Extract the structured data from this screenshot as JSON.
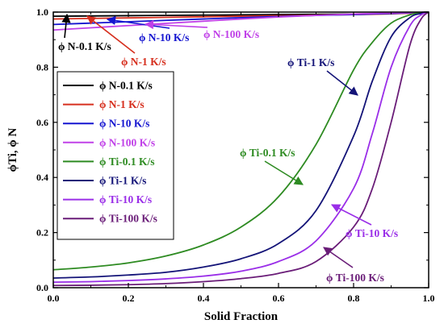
{
  "chart_data": {
    "type": "line",
    "xlabel": "Solid Fraction",
    "ylabel": "ϕTi, ϕ N",
    "xlim": [
      0.0,
      1.0
    ],
    "ylim": [
      0.0,
      1.0
    ],
    "xticks": [
      "0.0",
      "0.2",
      "0.4",
      "0.6",
      "0.8",
      "1.0"
    ],
    "yticks": [
      "0.0",
      "0.2",
      "0.4",
      "0.6",
      "0.8",
      "1.0"
    ],
    "legend_position": "middle-left",
    "grid": false,
    "x": [
      0.0,
      0.1,
      0.2,
      0.3,
      0.4,
      0.5,
      0.6,
      0.7,
      0.8,
      0.85,
      0.9,
      0.95,
      0.98,
      1.0
    ],
    "series": [
      {
        "name": "ϕ N-0.1 K/s",
        "color": "#000000",
        "values": [
          0.985,
          0.986,
          0.987,
          0.988,
          0.989,
          0.99,
          0.991,
          0.992,
          0.993,
          0.994,
          0.995,
          0.996,
          0.998,
          1.0
        ]
      },
      {
        "name": "ϕ N-1 K/s",
        "color": "#d62f1e",
        "values": [
          0.975,
          0.977,
          0.979,
          0.981,
          0.983,
          0.985,
          0.987,
          0.989,
          0.991,
          0.992,
          0.994,
          0.996,
          0.998,
          1.0
        ]
      },
      {
        "name": "ϕ N-10 K/s",
        "color": "#1515d0",
        "values": [
          0.955,
          0.96,
          0.965,
          0.97,
          0.975,
          0.98,
          0.984,
          0.988,
          0.991,
          0.993,
          0.995,
          0.997,
          0.999,
          1.0
        ]
      },
      {
        "name": "ϕ N-100 K/s",
        "color": "#c040e8",
        "values": [
          0.935,
          0.943,
          0.951,
          0.959,
          0.967,
          0.975,
          0.982,
          0.988,
          0.993,
          0.995,
          0.997,
          0.998,
          0.999,
          1.0
        ]
      },
      {
        "name": "ϕ Ti-0.1 K/s",
        "color": "#2e8b22",
        "values": [
          0.065,
          0.075,
          0.09,
          0.115,
          0.155,
          0.22,
          0.33,
          0.52,
          0.79,
          0.89,
          0.96,
          0.99,
          0.998,
          1.0
        ]
      },
      {
        "name": "ϕ Ti-1 K/s",
        "color": "#141478",
        "values": [
          0.035,
          0.039,
          0.046,
          0.056,
          0.075,
          0.105,
          0.16,
          0.28,
          0.55,
          0.75,
          0.91,
          0.98,
          0.995,
          1.0
        ]
      },
      {
        "name": "ϕ Ti-10 K/s",
        "color": "#9a2ee8",
        "values": [
          0.02,
          0.022,
          0.026,
          0.032,
          0.042,
          0.06,
          0.095,
          0.17,
          0.36,
          0.56,
          0.8,
          0.95,
          0.99,
          1.0
        ]
      },
      {
        "name": "ϕ Ti-100 K/s",
        "color": "#6a1d78",
        "values": [
          0.008,
          0.009,
          0.011,
          0.015,
          0.022,
          0.033,
          0.052,
          0.095,
          0.22,
          0.36,
          0.6,
          0.88,
          0.975,
          1.0
        ]
      }
    ],
    "annotations": [
      {
        "text": "ϕ N-0.1 K/s",
        "color": "#000000"
      },
      {
        "text": "ϕ N-1 K/s",
        "color": "#d62f1e"
      },
      {
        "text": "ϕ N-10 K/s",
        "color": "#1515d0"
      },
      {
        "text": "ϕ N-100 K/s",
        "color": "#c040e8"
      },
      {
        "text": "ϕ Ti-1 K/s",
        "color": "#141478"
      },
      {
        "text": "ϕ Ti-0.1 K/s",
        "color": "#2e8b22"
      },
      {
        "text": "ϕ Ti-10 K/s",
        "color": "#9a2ee8"
      },
      {
        "text": "ϕ Ti-100 K/s",
        "color": "#6a1d78"
      }
    ]
  }
}
